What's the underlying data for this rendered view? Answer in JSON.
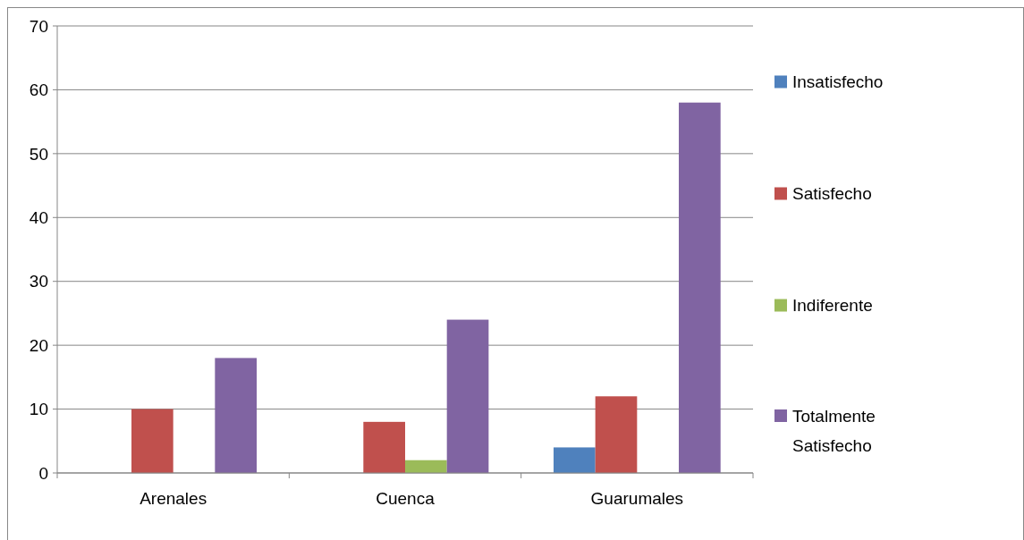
{
  "chart_data": {
    "type": "bar",
    "categories": [
      "Arenales",
      "Cuenca",
      "Guarumales"
    ],
    "series": [
      {
        "name": "Insatisfecho",
        "color": "#4f81bd",
        "values": [
          0,
          0,
          4
        ]
      },
      {
        "name": "Satisfecho",
        "color": "#c0504d",
        "values": [
          10,
          8,
          12
        ]
      },
      {
        "name": "Indiferente",
        "color": "#9bbb59",
        "values": [
          0,
          2,
          0
        ]
      },
      {
        "name": "Totalmente Satisfecho",
        "color": "#8064a2",
        "values": [
          18,
          24,
          58
        ]
      }
    ],
    "ylim": [
      0,
      70
    ],
    "yticks": [
      0,
      10,
      20,
      30,
      40,
      50,
      60,
      70
    ],
    "grid": "y",
    "legend": "right"
  }
}
